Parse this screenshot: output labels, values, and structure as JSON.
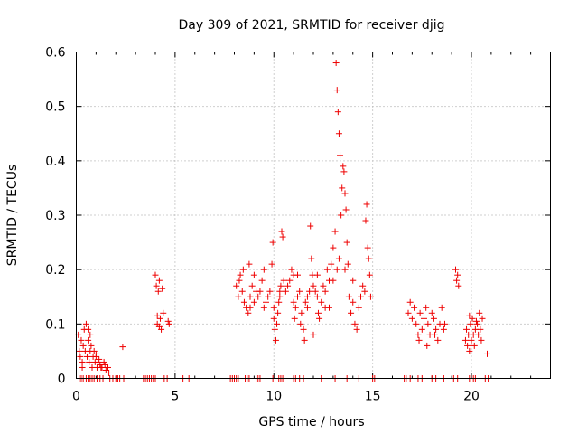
{
  "chart_data": {
    "type": "scatter",
    "title": "Day 309 of 2021, SRMTID for receiver djig",
    "xlabel": "GPS time / hours",
    "ylabel": "SRMTID / TECUs",
    "xlim": [
      0,
      24
    ],
    "ylim": [
      0,
      0.6
    ],
    "xticks": [
      0,
      5,
      10,
      15,
      20
    ],
    "yticks": [
      0,
      0.1,
      0.2,
      0.3,
      0.4,
      0.5,
      0.6
    ],
    "xtick_labels": [
      "0",
      "5",
      "10",
      "15",
      "20"
    ],
    "ytick_labels": [
      "0",
      "0.1",
      "0.2",
      "0.3",
      "0.4",
      "0.5",
      "0.6"
    ],
    "grid": true,
    "marker": "+",
    "marker_color": "#ee0000",
    "series": [
      {
        "name": "SRMTID",
        "points": [
          [
            0.1,
            0.08
          ],
          [
            0.15,
            0.05
          ],
          [
            0.2,
            0.04
          ],
          [
            0.25,
            0.07
          ],
          [
            0.3,
            0.03
          ],
          [
            0.35,
            0.06
          ],
          [
            0.4,
            0.09
          ],
          [
            0.45,
            0.05
          ],
          [
            0.5,
            0.1
          ],
          [
            0.55,
            0.04
          ],
          [
            0.6,
            0.07
          ],
          [
            0.65,
            0.03
          ],
          [
            0.7,
            0.05
          ],
          [
            0.75,
            0.06
          ],
          [
            0.8,
            0.02
          ],
          [
            0.85,
            0.04
          ],
          [
            0.9,
            0.05
          ],
          [
            0.95,
            0.03
          ],
          [
            1.0,
            0.04
          ],
          [
            1.05,
            0.02
          ],
          [
            1.1,
            0.03
          ],
          [
            1.2,
            0.025
          ],
          [
            1.3,
            0.02
          ],
          [
            1.4,
            0.03
          ],
          [
            1.5,
            0.015
          ],
          [
            1.6,
            0.02
          ],
          [
            1.65,
            0.01
          ],
          [
            0.3,
            0.02
          ],
          [
            0.6,
            0.09
          ],
          [
            0.7,
            0.08
          ],
          [
            1.0,
            0.045
          ],
          [
            1.15,
            0.035
          ],
          [
            1.25,
            0.02
          ],
          [
            1.45,
            0.025
          ],
          [
            2.35,
            0.058
          ],
          [
            4.0,
            0.19
          ],
          [
            4.05,
            0.17
          ],
          [
            4.1,
            0.1
          ],
          [
            4.15,
            0.16
          ],
          [
            4.2,
            0.18
          ],
          [
            4.25,
            0.11
          ],
          [
            4.3,
            0.09
          ],
          [
            4.35,
            0.165
          ],
          [
            4.4,
            0.12
          ],
          [
            4.1,
            0.115
          ],
          [
            4.2,
            0.095
          ],
          [
            4.65,
            0.105
          ],
          [
            4.7,
            0.1
          ],
          [
            8.1,
            0.17
          ],
          [
            8.2,
            0.15
          ],
          [
            8.25,
            0.18
          ],
          [
            8.3,
            0.19
          ],
          [
            8.4,
            0.16
          ],
          [
            8.45,
            0.2
          ],
          [
            8.5,
            0.14
          ],
          [
            8.6,
            0.13
          ],
          [
            8.7,
            0.12
          ],
          [
            8.75,
            0.21
          ],
          [
            8.8,
            0.15
          ],
          [
            8.9,
            0.17
          ],
          [
            9.0,
            0.19
          ],
          [
            9.1,
            0.16
          ],
          [
            9.2,
            0.15
          ],
          [
            9.3,
            0.16
          ],
          [
            9.4,
            0.18
          ],
          [
            9.5,
            0.2
          ],
          [
            9.6,
            0.14
          ],
          [
            9.7,
            0.15
          ],
          [
            9.8,
            0.16
          ],
          [
            9.9,
            0.21
          ],
          [
            9.95,
            0.25
          ],
          [
            10.0,
            0.13
          ],
          [
            10.05,
            0.09
          ],
          [
            10.1,
            0.07
          ],
          [
            10.15,
            0.1
          ],
          [
            10.2,
            0.12
          ],
          [
            10.25,
            0.14
          ],
          [
            10.3,
            0.15
          ],
          [
            10.35,
            0.17
          ],
          [
            10.4,
            0.27
          ],
          [
            10.45,
            0.26
          ],
          [
            10.5,
            0.18
          ],
          [
            10.6,
            0.16
          ],
          [
            10.7,
            0.17
          ],
          [
            10.8,
            0.18
          ],
          [
            10.9,
            0.2
          ],
          [
            11.0,
            0.14
          ],
          [
            11.05,
            0.11
          ],
          [
            11.1,
            0.13
          ],
          [
            11.2,
            0.15
          ],
          [
            11.3,
            0.16
          ],
          [
            11.35,
            0.1
          ],
          [
            11.4,
            0.12
          ],
          [
            11.5,
            0.09
          ],
          [
            11.55,
            0.07
          ],
          [
            11.6,
            0.14
          ],
          [
            11.7,
            0.15
          ],
          [
            11.8,
            0.16
          ],
          [
            11.85,
            0.28
          ],
          [
            11.9,
            0.22
          ],
          [
            11.95,
            0.19
          ],
          [
            12.0,
            0.17
          ],
          [
            12.1,
            0.16
          ],
          [
            12.2,
            0.15
          ],
          [
            12.25,
            0.12
          ],
          [
            12.3,
            0.11
          ],
          [
            12.4,
            0.14
          ],
          [
            12.5,
            0.17
          ],
          [
            12.6,
            0.16
          ],
          [
            12.7,
            0.2
          ],
          [
            12.8,
            0.18
          ],
          [
            12.9,
            0.21
          ],
          [
            13.0,
            0.24
          ],
          [
            13.1,
            0.27
          ],
          [
            13.15,
            0.58
          ],
          [
            13.2,
            0.53
          ],
          [
            13.25,
            0.49
          ],
          [
            13.3,
            0.45
          ],
          [
            13.35,
            0.41
          ],
          [
            13.4,
            0.3
          ],
          [
            13.45,
            0.35
          ],
          [
            13.5,
            0.39
          ],
          [
            13.55,
            0.38
          ],
          [
            13.6,
            0.34
          ],
          [
            13.65,
            0.31
          ],
          [
            13.7,
            0.25
          ],
          [
            13.75,
            0.21
          ],
          [
            13.8,
            0.15
          ],
          [
            13.9,
            0.12
          ],
          [
            14.0,
            0.14
          ],
          [
            14.1,
            0.1
          ],
          [
            14.2,
            0.09
          ],
          [
            14.3,
            0.13
          ],
          [
            14.4,
            0.15
          ],
          [
            14.5,
            0.17
          ],
          [
            14.6,
            0.16
          ],
          [
            14.65,
            0.29
          ],
          [
            14.7,
            0.32
          ],
          [
            14.75,
            0.24
          ],
          [
            14.8,
            0.22
          ],
          [
            14.85,
            0.19
          ],
          [
            14.9,
            0.15
          ],
          [
            13.2,
            0.2
          ],
          [
            13.3,
            0.22
          ],
          [
            12.6,
            0.13
          ],
          [
            12.0,
            0.08
          ],
          [
            11.0,
            0.19
          ],
          [
            10.0,
            0.11
          ],
          [
            9.5,
            0.13
          ],
          [
            9.0,
            0.14
          ],
          [
            8.8,
            0.13
          ],
          [
            10.3,
            0.16
          ],
          [
            12.2,
            0.19
          ],
          [
            13.0,
            0.18
          ],
          [
            11.7,
            0.13
          ],
          [
            13.6,
            0.2
          ],
          [
            14.0,
            0.18
          ],
          [
            12.8,
            0.13
          ],
          [
            11.2,
            0.19
          ],
          [
            16.8,
            0.12
          ],
          [
            16.9,
            0.14
          ],
          [
            17.0,
            0.11
          ],
          [
            17.1,
            0.13
          ],
          [
            17.2,
            0.1
          ],
          [
            17.3,
            0.08
          ],
          [
            17.4,
            0.12
          ],
          [
            17.5,
            0.09
          ],
          [
            17.6,
            0.11
          ],
          [
            17.7,
            0.13
          ],
          [
            17.8,
            0.1
          ],
          [
            17.9,
            0.08
          ],
          [
            18.0,
            0.12
          ],
          [
            18.1,
            0.11
          ],
          [
            18.2,
            0.09
          ],
          [
            18.3,
            0.07
          ],
          [
            18.4,
            0.1
          ],
          [
            18.5,
            0.13
          ],
          [
            18.6,
            0.09
          ],
          [
            18.65,
            0.1
          ],
          [
            17.35,
            0.07
          ],
          [
            17.75,
            0.06
          ],
          [
            18.15,
            0.08
          ],
          [
            19.2,
            0.2
          ],
          [
            19.25,
            0.18
          ],
          [
            19.3,
            0.19
          ],
          [
            19.35,
            0.17
          ],
          [
            19.7,
            0.07
          ],
          [
            19.75,
            0.09
          ],
          [
            19.8,
            0.06
          ],
          [
            19.85,
            0.08
          ],
          [
            19.9,
            0.05
          ],
          [
            19.95,
            0.1
          ],
          [
            20.0,
            0.07
          ],
          [
            20.05,
            0.11
          ],
          [
            20.1,
            0.08
          ],
          [
            20.15,
            0.06
          ],
          [
            20.2,
            0.09
          ],
          [
            20.3,
            0.1
          ],
          [
            20.35,
            0.08
          ],
          [
            20.4,
            0.12
          ],
          [
            20.45,
            0.09
          ],
          [
            20.5,
            0.07
          ],
          [
            20.55,
            0.11
          ],
          [
            20.8,
            0.045
          ],
          [
            19.9,
            0.115
          ],
          [
            20.25,
            0.105
          ],
          [
            0.15,
            0
          ],
          [
            0.25,
            0
          ],
          [
            0.35,
            0
          ],
          [
            0.5,
            0
          ],
          [
            0.6,
            0
          ],
          [
            0.7,
            0
          ],
          [
            0.8,
            0
          ],
          [
            0.9,
            0
          ],
          [
            1.05,
            0
          ],
          [
            1.2,
            0
          ],
          [
            1.35,
            0
          ],
          [
            1.7,
            0
          ],
          [
            1.85,
            0
          ],
          [
            2.0,
            0
          ],
          [
            2.1,
            0
          ],
          [
            2.2,
            0
          ],
          [
            2.4,
            0
          ],
          [
            3.4,
            0
          ],
          [
            3.5,
            0
          ],
          [
            3.6,
            0
          ],
          [
            3.7,
            0
          ],
          [
            3.8,
            0
          ],
          [
            3.9,
            0
          ],
          [
            4.0,
            0
          ],
          [
            4.45,
            0
          ],
          [
            4.6,
            0
          ],
          [
            5.4,
            0
          ],
          [
            5.7,
            0
          ],
          [
            7.8,
            0
          ],
          [
            7.9,
            0
          ],
          [
            8.0,
            0
          ],
          [
            8.1,
            0
          ],
          [
            8.2,
            0
          ],
          [
            8.55,
            0
          ],
          [
            8.65,
            0
          ],
          [
            8.75,
            0
          ],
          [
            9.1,
            0
          ],
          [
            9.2,
            0
          ],
          [
            9.3,
            0
          ],
          [
            9.95,
            0
          ],
          [
            10.25,
            0
          ],
          [
            10.35,
            0
          ],
          [
            10.45,
            0
          ],
          [
            11.0,
            0
          ],
          [
            11.1,
            0
          ],
          [
            11.3,
            0
          ],
          [
            11.5,
            0
          ],
          [
            12.4,
            0
          ],
          [
            13.1,
            0
          ],
          [
            13.7,
            0
          ],
          [
            14.3,
            0
          ],
          [
            15.0,
            0
          ],
          [
            15.1,
            0
          ],
          [
            16.6,
            0
          ],
          [
            16.7,
            0
          ],
          [
            16.9,
            0
          ],
          [
            17.3,
            0
          ],
          [
            17.5,
            0
          ],
          [
            18.0,
            0
          ],
          [
            18.2,
            0
          ],
          [
            18.6,
            0
          ],
          [
            19.1,
            0
          ],
          [
            19.3,
            0
          ],
          [
            19.9,
            0
          ],
          [
            20.1,
            0
          ],
          [
            20.2,
            0
          ],
          [
            20.7,
            0
          ],
          [
            20.85,
            0
          ]
        ]
      }
    ]
  }
}
